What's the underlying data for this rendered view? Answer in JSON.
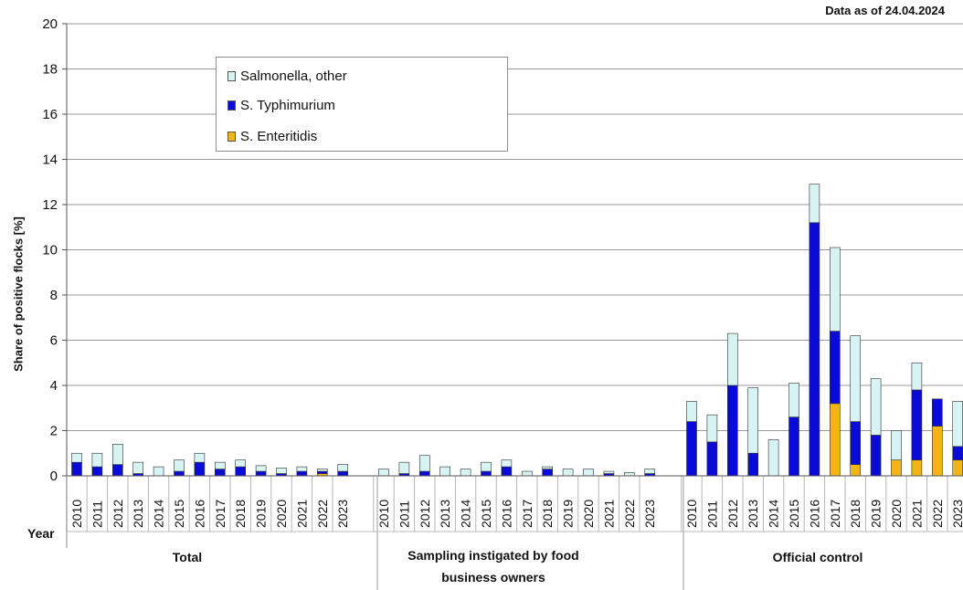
{
  "as_of_text": "Data as of 24.04.2024",
  "year_label": "Year",
  "legend": [
    {
      "label": "Salmonella, other",
      "color": "#d7f3f3"
    },
    {
      "label": "S. Typhimurium",
      "color": "#0b0bd6"
    },
    {
      "label": "S. Enteritidis",
      "color": "#f2b417"
    }
  ],
  "chart_data": {
    "type": "bar",
    "stacked": true,
    "ylabel": "Share of positive flocks [%]",
    "ylim": [
      0,
      20
    ],
    "yticks": [
      0,
      2,
      4,
      6,
      8,
      10,
      12,
      14,
      16,
      18,
      20
    ],
    "grid": true,
    "legend_position": "top-left",
    "groups": [
      {
        "name": "Total",
        "categories": [
          "2010",
          "2011",
          "2012",
          "2013",
          "2014",
          "2015",
          "2016",
          "2017",
          "2018",
          "2019",
          "2020",
          "2021",
          "2022",
          "2023"
        ],
        "series": [
          {
            "name": "S. Enteritidis",
            "values": [
              0,
              0,
              0,
              0,
              0,
              0,
              0,
              0,
              0,
              0,
              0,
              0,
              0.1,
              0
            ]
          },
          {
            "name": "S. Typhimurium",
            "values": [
              0.6,
              0.4,
              0.5,
              0.1,
              0,
              0.2,
              0.6,
              0.3,
              0.4,
              0.2,
              0.1,
              0.2,
              0.1,
              0.2
            ]
          },
          {
            "name": "Salmonella, other",
            "values": [
              0.4,
              0.6,
              0.9,
              0.5,
              0.4,
              0.5,
              0.4,
              0.3,
              0.3,
              0.25,
              0.25,
              0.2,
              0.1,
              0.3
            ]
          }
        ]
      },
      {
        "name": "Sampling instigated by food business owners",
        "categories": [
          "2010",
          "2011",
          "2012",
          "2013",
          "2014",
          "2015",
          "2016",
          "2017",
          "2018",
          "2019",
          "2020",
          "2021",
          "2022",
          "2023"
        ],
        "series": [
          {
            "name": "S. Enteritidis",
            "values": [
              0,
              0,
              0,
              0,
              0,
              0,
              0,
              0,
              0,
              0,
              0,
              0,
              0,
              0
            ]
          },
          {
            "name": "S. Typhimurium",
            "values": [
              0,
              0.1,
              0.2,
              0,
              0,
              0.2,
              0.4,
              0,
              0.3,
              0,
              0,
              0.1,
              0,
              0.1
            ]
          },
          {
            "name": "Salmonella, other",
            "values": [
              0.3,
              0.5,
              0.7,
              0.4,
              0.3,
              0.4,
              0.3,
              0.2,
              0.1,
              0.3,
              0.3,
              0.1,
              0.15,
              0.2
            ]
          }
        ]
      },
      {
        "name": "Official control",
        "categories": [
          "2010",
          "2011",
          "2012",
          "2013",
          "2014",
          "2015",
          "2016",
          "2017",
          "2018",
          "2019",
          "2020",
          "2021",
          "2022",
          "2023"
        ],
        "series": [
          {
            "name": "S. Enteritidis",
            "values": [
              0,
              0,
              0,
              0,
              0,
              0,
              0,
              3.2,
              0.5,
              0,
              0.7,
              0.7,
              2.2,
              0.7
            ]
          },
          {
            "name": "S. Typhimurium",
            "values": [
              2.4,
              1.5,
              4.0,
              1.0,
              0,
              2.6,
              11.2,
              3.2,
              1.9,
              1.8,
              0,
              3.1,
              1.2,
              0.6
            ]
          },
          {
            "name": "Salmonella, other",
            "values": [
              0.9,
              1.2,
              2.3,
              2.9,
              1.6,
              1.5,
              1.7,
              3.7,
              3.8,
              2.5,
              1.3,
              1.2,
              0,
              2.0
            ]
          }
        ]
      }
    ]
  }
}
